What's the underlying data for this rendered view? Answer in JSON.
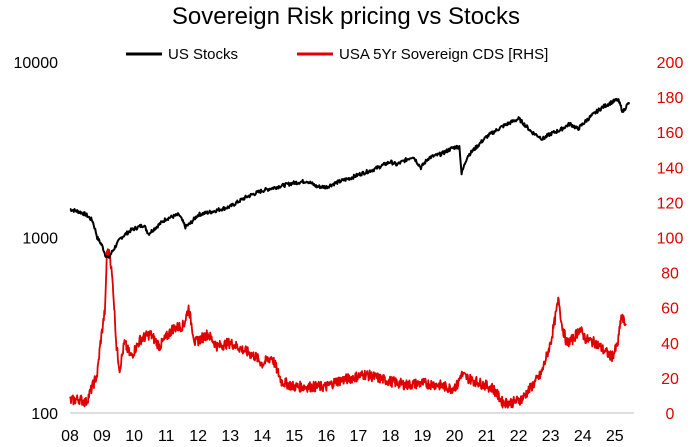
{
  "chart_data": {
    "type": "line",
    "title": "Sovereign Risk pricing vs Stocks",
    "xlabel": "",
    "ylabel": "",
    "y2label": "",
    "x_tick_labels": [
      "08",
      "09",
      "10",
      "11",
      "12",
      "13",
      "14",
      "15",
      "16",
      "17",
      "18",
      "19",
      "20",
      "21",
      "22",
      "23",
      "24",
      "25"
    ],
    "y_left": {
      "scale": "log",
      "range": [
        100,
        10000
      ],
      "tick_values": [
        100,
        1000,
        10000
      ],
      "tick_labels": [
        "100",
        "1000",
        "10000"
      ]
    },
    "y_right": {
      "scale": "linear",
      "range": [
        0,
        200
      ],
      "tick_values": [
        0,
        20,
        40,
        60,
        80,
        100,
        120,
        140,
        160,
        180,
        200
      ],
      "tick_labels": [
        "0",
        "20",
        "40",
        "60",
        "80",
        "100",
        "120",
        "140",
        "160",
        "180",
        "200"
      ]
    },
    "legend": {
      "position": "top-center"
    },
    "colors": {
      "stocks": "#000000",
      "cds": "#e00000",
      "right_axis": "#e00000"
    },
    "series": [
      {
        "name": "US Stocks",
        "axis": "left",
        "x": [
          2008.0,
          2008.3,
          2008.5,
          2008.7,
          2008.85,
          2009.0,
          2009.1,
          2009.2,
          2009.35,
          2009.6,
          2009.9,
          2010.3,
          2010.45,
          2010.7,
          2011.0,
          2011.4,
          2011.6,
          2011.75,
          2012.0,
          2012.4,
          2012.7,
          2013.0,
          2013.5,
          2014.0,
          2014.5,
          2015.0,
          2015.4,
          2015.7,
          2016.0,
          2016.3,
          2016.8,
          2017.0,
          2017.5,
          2018.0,
          2018.2,
          2018.7,
          2018.95,
          2019.2,
          2019.6,
          2019.95,
          2020.15,
          2020.22,
          2020.4,
          2020.7,
          2021.0,
          2021.5,
          2022.0,
          2022.4,
          2022.75,
          2023.0,
          2023.3,
          2023.6,
          2023.85,
          2024.2,
          2024.6,
          2024.9,
          2025.1,
          2025.25,
          2025.45
        ],
        "values": [
          1450,
          1400,
          1350,
          1250,
          1000,
          900,
          800,
          760,
          850,
          1000,
          1100,
          1180,
          1050,
          1150,
          1280,
          1350,
          1150,
          1200,
          1350,
          1400,
          1450,
          1500,
          1700,
          1850,
          1950,
          2050,
          2100,
          1950,
          1940,
          2050,
          2200,
          2280,
          2450,
          2700,
          2600,
          2900,
          2500,
          2850,
          3000,
          3250,
          3300,
          2300,
          2900,
          3300,
          3750,
          4300,
          4750,
          4000,
          3650,
          3900,
          4100,
          4450,
          4150,
          4800,
          5500,
          5900,
          6100,
          5200,
          5900
        ]
      },
      {
        "name": "USA 5Yr Sovereign CDS [RHS]",
        "axis": "right",
        "x": [
          2008.0,
          2008.3,
          2008.5,
          2008.7,
          2008.85,
          2008.95,
          2009.1,
          2009.15,
          2009.25,
          2009.35,
          2009.45,
          2009.55,
          2009.7,
          2009.9,
          2010.2,
          2010.5,
          2010.8,
          2011.2,
          2011.55,
          2011.7,
          2011.9,
          2012.3,
          2012.6,
          2013.0,
          2013.5,
          2013.8,
          2014.0,
          2014.3,
          2014.6,
          2015.0,
          2015.5,
          2016.0,
          2016.3,
          2016.8,
          2017.2,
          2017.6,
          2018.0,
          2018.5,
          2019.0,
          2019.5,
          2019.9,
          2020.1,
          2020.2,
          2020.4,
          2020.8,
          2021.2,
          2021.5,
          2021.8,
          2022.1,
          2022.4,
          2022.7,
          2023.0,
          2023.25,
          2023.35,
          2023.5,
          2023.7,
          2023.9,
          2024.1,
          2024.4,
          2024.7,
          2024.9,
          2025.0,
          2025.1,
          2025.2,
          2025.35
        ],
        "values": [
          7,
          8,
          6,
          15,
          22,
          40,
          60,
          92,
          90,
          70,
          38,
          25,
          40,
          32,
          42,
          45,
          38,
          48,
          50,
          60,
          40,
          45,
          38,
          40,
          35,
          32,
          28,
          32,
          18,
          15,
          15,
          15,
          18,
          20,
          22,
          20,
          18,
          16,
          17,
          16,
          14,
          16,
          22,
          20,
          17,
          14,
          6,
          6,
          8,
          15,
          22,
          40,
          65,
          50,
          40,
          42,
          48,
          42,
          40,
          35,
          32,
          35,
          40,
          55,
          50
        ]
      }
    ]
  }
}
